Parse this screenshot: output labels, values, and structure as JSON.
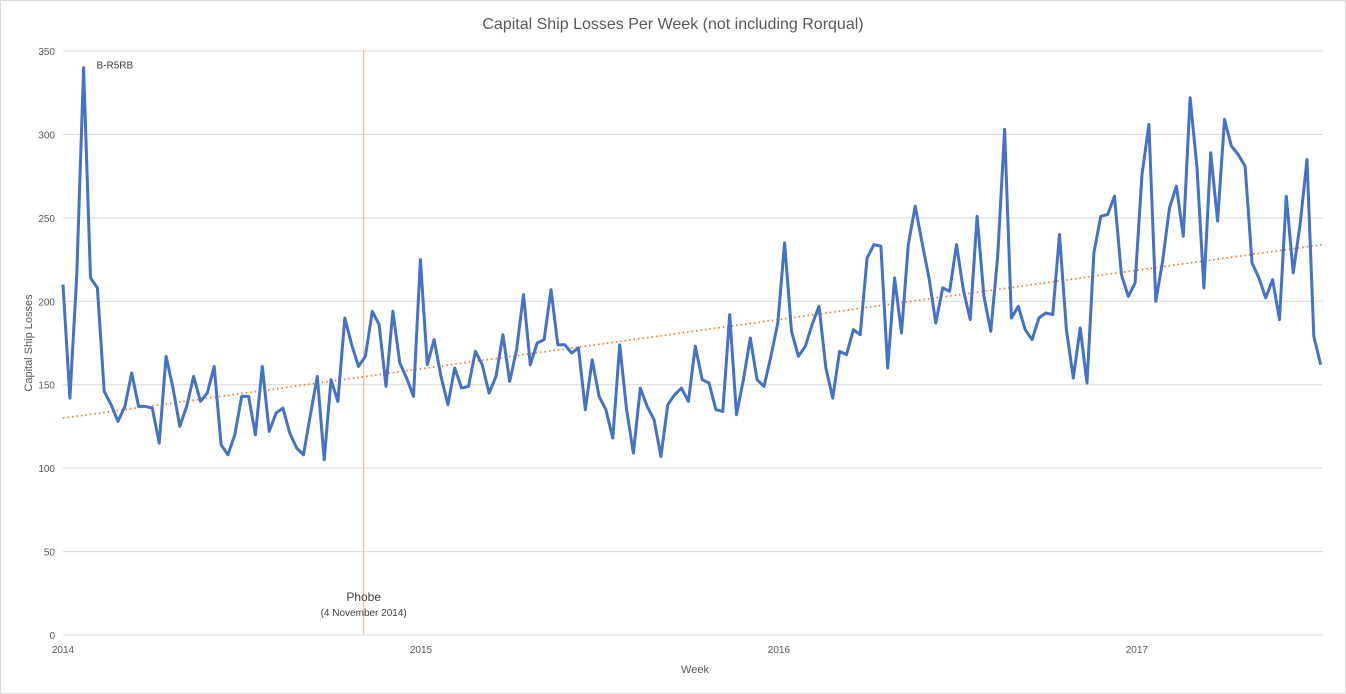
{
  "chart_data": {
    "type": "line",
    "title": "Capital Ship Losses Per Week (not including Rorqual)",
    "xlabel": "Week",
    "ylabel": "Capital Ship Losses",
    "ylim": [
      0,
      350
    ],
    "yticks": [
      "0",
      "50",
      "100",
      "150",
      "200",
      "250",
      "300",
      "350"
    ],
    "xlim": [
      2014.0,
      2017.52
    ],
    "xticks": [
      "2014",
      "2015",
      "2016",
      "2017"
    ],
    "grid": true,
    "colors": {
      "series": "#4472c4",
      "trend": "#ed7d31",
      "marker": "#f4b183",
      "grid": "#d9d9d9",
      "text": "#595959"
    },
    "annotations": [
      {
        "label": "B-R5RB",
        "x": 2014.06,
        "y": 340
      },
      {
        "label": "Phobe",
        "sublabel": "(4 November 2014)",
        "x": 2014.84
      }
    ],
    "series": [
      {
        "style": "solid",
        "x_start": 2014.0,
        "x_step": 0.0192,
        "values": [
          210,
          142,
          215,
          340,
          214,
          208,
          146,
          138,
          128,
          137,
          157,
          137,
          137,
          136,
          115,
          167,
          148,
          125,
          137,
          155,
          140,
          145,
          161,
          114,
          108,
          120,
          143,
          143,
          120,
          161,
          122,
          133,
          136,
          121,
          112,
          108,
          132,
          155,
          105,
          153,
          140,
          190,
          174,
          161,
          167,
          194,
          186,
          149,
          194,
          163,
          154,
          143,
          225,
          162,
          177,
          155,
          138,
          160,
          148,
          149,
          170,
          162,
          145,
          155,
          180,
          152,
          171,
          204,
          162,
          175,
          177,
          207,
          174,
          174,
          169,
          172,
          135,
          165,
          143,
          135,
          118,
          174,
          135,
          109,
          148,
          137,
          129,
          107,
          138,
          144,
          148,
          140,
          173,
          153,
          151,
          135,
          134,
          192,
          132,
          153,
          178,
          153,
          149,
          167,
          187,
          235,
          182,
          167,
          173,
          186,
          197,
          160,
          142,
          170,
          168,
          183,
          180,
          226,
          234,
          233,
          160,
          214,
          181,
          234,
          257,
          235,
          214,
          187,
          208,
          206,
          234,
          207,
          189,
          251,
          203,
          182,
          227,
          303,
          190,
          197,
          183,
          177,
          190,
          193,
          192,
          240,
          183,
          154,
          184,
          151,
          229,
          251,
          252,
          263,
          216,
          203,
          211,
          276,
          306,
          200,
          224,
          256,
          269,
          239,
          322,
          280,
          208,
          289,
          248,
          309,
          293,
          288,
          281,
          223,
          214,
          202,
          213,
          189,
          263,
          217,
          246,
          285,
          179,
          162
        ]
      },
      {
        "style": "dotted",
        "name": "",
        "x": [
          2014.0,
          2017.52
        ],
        "values": [
          130,
          234
        ]
      }
    ]
  }
}
